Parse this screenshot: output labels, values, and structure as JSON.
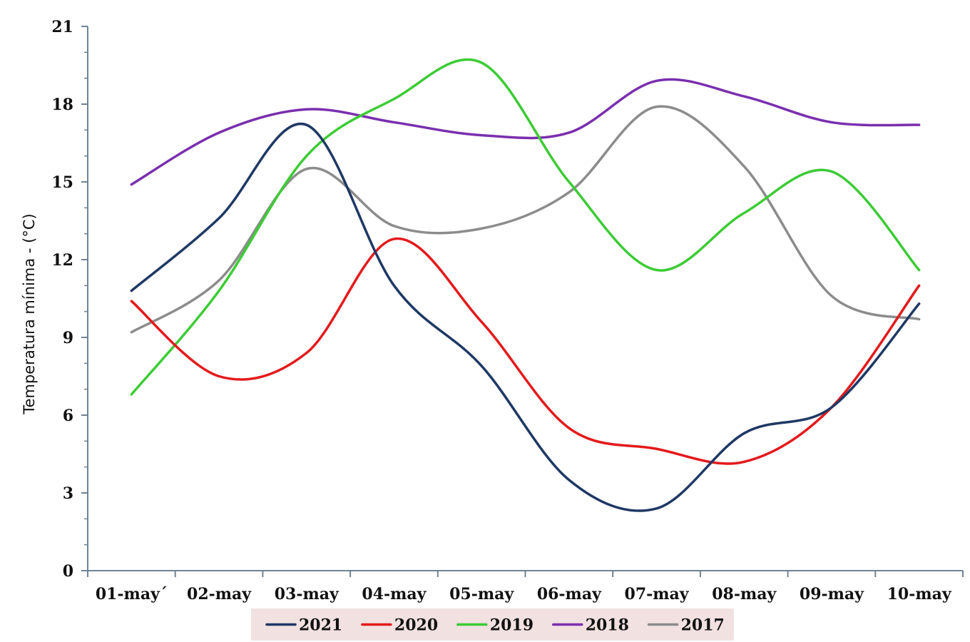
{
  "chart_data": {
    "type": "line",
    "title": "",
    "xlabel": "",
    "ylabel": "Temperatura mínima  - (°C)",
    "categories": [
      "01-may´",
      "02-may",
      "03-may",
      "04-may",
      "05-may",
      "06-may",
      "07-may",
      "08-may",
      "09-may",
      "10-may"
    ],
    "ylim": [
      0,
      21
    ],
    "yticks": [
      0,
      3,
      6,
      9,
      12,
      15,
      18,
      21
    ],
    "grid": false,
    "legend": "bottom",
    "series": [
      {
        "name": "2021",
        "color": "#1f3864",
        "values": [
          10.8,
          13.6,
          17.2,
          11.0,
          7.9,
          3.5,
          2.4,
          5.3,
          6.3,
          10.3
        ]
      },
      {
        "name": "2020",
        "color": "#e31a1c",
        "values": [
          10.4,
          7.5,
          8.4,
          12.8,
          9.6,
          5.5,
          4.7,
          4.2,
          6.3,
          11.0
        ]
      },
      {
        "name": "2019",
        "color": "#3ccb35",
        "values": [
          6.8,
          10.8,
          16.0,
          18.2,
          19.6,
          15.0,
          11.6,
          13.8,
          15.4,
          11.6
        ]
      },
      {
        "name": "2018",
        "color": "#7a2fae",
        "values": [
          14.9,
          16.9,
          17.8,
          17.3,
          16.8,
          16.9,
          18.9,
          18.3,
          17.3,
          17.2
        ]
      },
      {
        "name": "2017",
        "color": "#8c8c8c",
        "values": [
          9.2,
          11.2,
          15.5,
          13.3,
          13.2,
          14.6,
          17.9,
          15.6,
          10.6,
          9.7
        ]
      }
    ]
  }
}
